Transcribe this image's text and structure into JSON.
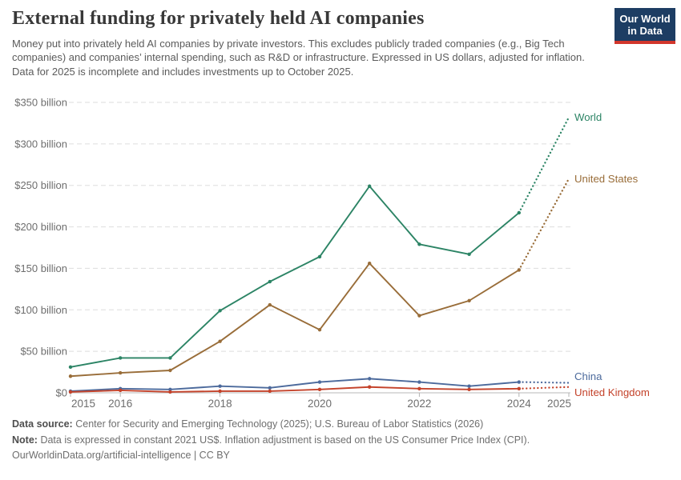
{
  "header": {
    "title": "External funding for privately held AI companies",
    "subtitle": "Money put into privately held AI companies by private investors. This excludes publicly traded companies (e.g., Big Tech companies) and companies’ internal spending, such as R&D or infrastructure. Expressed in US dollars, adjusted for inflation. Data for 2025 is incomplete and includes investments up to October 2025."
  },
  "logo": {
    "line1": "Our World",
    "line2": "in Data"
  },
  "colors": {
    "logo_bg": "#1d3d63",
    "logo_stripe": "#d2362c",
    "gridline": "#dddddd",
    "zero_line": "#c8c8c8",
    "tick_text": "#6e6e6e"
  },
  "chart_data": {
    "type": "line",
    "title": "External funding for privately held AI companies",
    "xlabel": "",
    "ylabel": "",
    "unit": "US$ billion (constant 2021 US$)",
    "x": [
      2015,
      2016,
      2017,
      2018,
      2019,
      2020,
      2021,
      2022,
      2023,
      2024,
      2025
    ],
    "x_ticks": [
      {
        "year": 2015,
        "label": "2015"
      },
      {
        "year": 2016,
        "label": "2016"
      },
      {
        "year": 2018,
        "label": "2018"
      },
      {
        "year": 2020,
        "label": "2020"
      },
      {
        "year": 2022,
        "label": "2022"
      },
      {
        "year": 2024,
        "label": "2024"
      },
      {
        "year": 2025,
        "label": "2025"
      }
    ],
    "y_axis": [
      {
        "v": 0,
        "label": "$0"
      },
      {
        "v": 50,
        "label": "$50 billion"
      },
      {
        "v": 100,
        "label": "$100 billion"
      },
      {
        "v": 150,
        "label": "$150 billion"
      },
      {
        "v": 200,
        "label": "$200 billion"
      },
      {
        "v": 250,
        "label": "$250 billion"
      },
      {
        "v": 300,
        "label": "$300 billion"
      },
      {
        "v": 350,
        "label": "$350 billion"
      }
    ],
    "ylim": [
      0,
      350
    ],
    "grid": "dashed-horizontal",
    "legend_position": "right-of-line-end",
    "final_year_incomplete": 2025,
    "final_segment_style": "dotted",
    "series": [
      {
        "name": "World",
        "color": "#2c8465",
        "values": [
          31,
          42,
          42,
          99,
          134,
          164,
          249,
          179,
          167,
          217,
          332
        ],
        "label_dy": 0
      },
      {
        "name": "United States",
        "color": "#996d39",
        "values": [
          20,
          24,
          27,
          62,
          106,
          76,
          156,
          93,
          111,
          148,
          258
        ],
        "label_dy": 0
      },
      {
        "name": "China",
        "color": "#4c6a9c",
        "values": [
          2,
          5,
          4,
          8,
          6,
          13,
          17,
          13,
          8,
          13,
          12
        ],
        "label_dy": -8
      },
      {
        "name": "United Kingdom",
        "color": "#c4432b",
        "values": [
          1,
          3,
          1,
          2,
          2,
          4,
          7,
          5,
          4,
          5,
          7
        ],
        "label_dy": 7
      }
    ]
  },
  "footer": {
    "source_label": "Data source:",
    "source_text": "Center for Security and Emerging Technology (2025); U.S. Bureau of Labor Statistics (2026)",
    "note_label": "Note:",
    "note_text": "Data is expressed in constant 2021 US$. Inflation adjustment is based on the US Consumer Price Index (CPI).",
    "cc_text": "OurWorldinData.org/artificial-intelligence | CC BY"
  }
}
